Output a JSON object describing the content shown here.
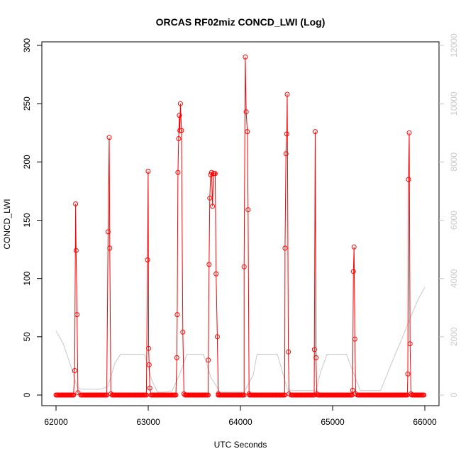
{
  "chart_data": {
    "type": "line",
    "title": "ORCAS RF02miz CONCD_LWI (Log)",
    "xlabel": "UTC Seconds",
    "ylabel": "CONCD_LWI",
    "xlim": [
      61940,
      66050
    ],
    "ylim": [
      0,
      300
    ],
    "y2lim": [
      0,
      12000
    ],
    "x_ticks": [
      "62000",
      "63000",
      "64000",
      "65000",
      "66000"
    ],
    "y_ticks": [
      "0",
      "50",
      "100",
      "150",
      "200",
      "250",
      "300"
    ],
    "y2_ticks": [
      "0",
      "2000",
      "4000",
      "6000",
      "8000",
      "10000",
      "12000"
    ],
    "grid": false,
    "colors": {
      "primary": "#ff0000",
      "secondary": "#c8c8c8"
    },
    "series": [
      {
        "axis": "left",
        "style": "line+open-circle-markers",
        "baseline_runs": [
          [
            62000,
            62190
          ],
          [
            62270,
            62550
          ],
          [
            62610,
            62980
          ],
          [
            63030,
            63300
          ],
          [
            63400,
            63650
          ],
          [
            63760,
            64040
          ],
          [
            64100,
            64480
          ],
          [
            64550,
            64800
          ],
          [
            64840,
            65210
          ],
          [
            65270,
            65810
          ],
          [
            65860,
            65995
          ]
        ],
        "spikes": [
          [
            [
              62202,
              21
            ],
            [
              62212,
              164
            ],
            [
              62218,
              124
            ],
            [
              62228,
              69
            ],
            [
              62238,
              2
            ]
          ],
          [
            [
              62565,
              140
            ],
            [
              62577,
              221
            ],
            [
              62583,
              126
            ],
            [
              62595,
              1
            ]
          ],
          [
            [
              62992,
              116
            ],
            [
              62999,
              192
            ],
            [
              63005,
              40
            ],
            [
              63010,
              26
            ],
            [
              63018,
              6
            ]
          ],
          [
            [
              63310,
              32
            ],
            [
              63315,
              69
            ],
            [
              63322,
              191
            ],
            [
              63330,
              220
            ],
            [
              63338,
              240
            ],
            [
              63343,
              227
            ],
            [
              63349,
              250
            ],
            [
              63361,
              227
            ],
            [
              63375,
              54
            ],
            [
              63388,
              1
            ]
          ],
          [
            [
              63652,
              30
            ],
            [
              63660,
              112
            ],
            [
              63668,
              169
            ],
            [
              63677,
              189
            ],
            [
              63687,
              191
            ],
            [
              63698,
              162
            ],
            [
              63707,
              190
            ],
            [
              63716,
              190
            ],
            [
              63726,
              190
            ],
            [
              63736,
              104
            ],
            [
              63749,
              50
            ],
            [
              63760,
              1
            ]
          ],
          [
            [
              64040,
              110
            ],
            [
              64053,
              290
            ],
            [
              64062,
              243
            ],
            [
              64075,
              226
            ],
            [
              64083,
              159
            ],
            [
              64094,
              1
            ]
          ],
          [
            [
              64484,
              126
            ],
            [
              64494,
              207
            ],
            [
              64502,
              224
            ],
            [
              64508,
              258
            ],
            [
              64520,
              37
            ],
            [
              64528,
              1
            ]
          ],
          [
            [
              64802,
              39
            ],
            [
              64811,
              226
            ],
            [
              64820,
              32
            ],
            [
              64828,
              1
            ]
          ],
          [
            [
              65217,
              4
            ],
            [
              65225,
              106
            ],
            [
              65232,
              127
            ],
            [
              65241,
              48
            ],
            [
              65250,
              1
            ]
          ],
          [
            [
              65815,
              18
            ],
            [
              65823,
              185
            ],
            [
              65831,
              225
            ],
            [
              65840,
              44
            ],
            [
              65850,
              1
            ]
          ]
        ]
      },
      {
        "axis": "right",
        "style": "line",
        "points": [
          [
            62000,
            2200
          ],
          [
            62080,
            1750
          ],
          [
            62160,
            1000
          ],
          [
            62230,
            250
          ],
          [
            62280,
            200
          ],
          [
            62380,
            200
          ],
          [
            62480,
            200
          ],
          [
            62560,
            280
          ],
          [
            62640,
            1100
          ],
          [
            62700,
            1400
          ],
          [
            62960,
            1400
          ],
          [
            63040,
            500
          ],
          [
            63100,
            100
          ],
          [
            63180,
            100
          ],
          [
            63260,
            150
          ],
          [
            63340,
            700
          ],
          [
            63420,
            1400
          ],
          [
            63600,
            1400
          ],
          [
            63680,
            600
          ],
          [
            63780,
            100
          ],
          [
            63900,
            100
          ],
          [
            64040,
            100
          ],
          [
            64140,
            700
          ],
          [
            64180,
            1400
          ],
          [
            64400,
            1400
          ],
          [
            64510,
            200
          ],
          [
            64560,
            150
          ],
          [
            64680,
            150
          ],
          [
            64820,
            150
          ],
          [
            64870,
            800
          ],
          [
            64940,
            1400
          ],
          [
            65150,
            1400
          ],
          [
            65240,
            650
          ],
          [
            65300,
            150
          ],
          [
            65420,
            150
          ],
          [
            65520,
            150
          ],
          [
            65640,
            1100
          ],
          [
            65760,
            2000
          ],
          [
            65850,
            2700
          ],
          [
            65930,
            3300
          ],
          [
            66000,
            3700
          ]
        ]
      }
    ]
  }
}
